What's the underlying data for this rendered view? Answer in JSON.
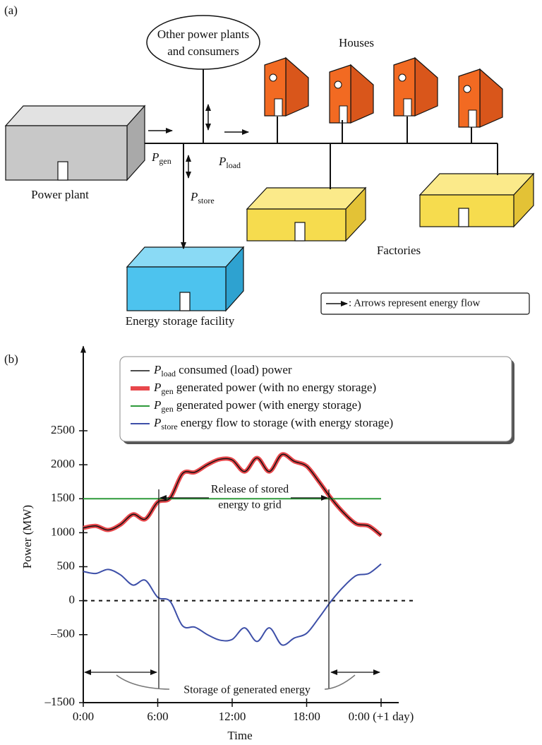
{
  "diagram": {
    "label": "(a)",
    "other": [
      "Other power plants",
      "and consumers"
    ],
    "houses": "Houses",
    "power_plant": "Power plant",
    "storage": "Energy storage facility",
    "factories": "Factories",
    "p_gen": {
      "symbol": "P",
      "subscript": "gen"
    },
    "p_load": {
      "symbol": "P",
      "subscript": "load"
    },
    "p_store": {
      "symbol": "P",
      "subscript": "store"
    },
    "legend": ": Arrows represent energy flow"
  },
  "chart_data": {
    "type": "line",
    "label": "(b)",
    "x_label": "Time",
    "y_label": "Power (MW)",
    "x": [
      0,
      1,
      2,
      3,
      4,
      5,
      6,
      7,
      8,
      9,
      10,
      11,
      12,
      13,
      14,
      15,
      16,
      17,
      18,
      19,
      20,
      21,
      22,
      23,
      24
    ],
    "xlim": [
      0,
      24
    ],
    "xticks": [
      {
        "value": 0,
        "label": "0:00"
      },
      {
        "value": 6,
        "label": "6:00"
      },
      {
        "value": 12,
        "label": "12:00"
      },
      {
        "value": 18,
        "label": "18:00"
      },
      {
        "value": 24,
        "label": "0:00 (+1 day)"
      }
    ],
    "ylim": [
      -1500,
      3700
    ],
    "yticks": [
      {
        "value": -1500,
        "label": "–1500"
      },
      {
        "value": -500,
        "label": "–500"
      },
      0,
      500,
      1000,
      1500,
      2000,
      2500
    ],
    "zero_line": true,
    "series": [
      {
        "symbol": "P",
        "subscript": "load",
        "name": "consumed (load) power",
        "color": "#111111",
        "line_width": 1.5,
        "values": [
          1070,
          1100,
          1040,
          1120,
          1270,
          1200,
          1450,
          1510,
          1870,
          1890,
          2000,
          2080,
          2070,
          1900,
          2100,
          1900,
          2150,
          2050,
          1980,
          1750,
          1500,
          1290,
          1130,
          1100,
          960
        ]
      },
      {
        "symbol": "P",
        "subscript": "gen",
        "name": "generated power (with no energy storage)",
        "color": "#e8474b",
        "line_width": 6,
        "values": [
          1070,
          1100,
          1040,
          1120,
          1270,
          1200,
          1450,
          1510,
          1870,
          1890,
          2000,
          2080,
          2070,
          1900,
          2100,
          1900,
          2150,
          2050,
          1980,
          1750,
          1500,
          1290,
          1130,
          1100,
          960
        ]
      },
      {
        "symbol": "P",
        "subscript": "gen",
        "name": "generated power (with energy storage)",
        "color": "#2e9a3a",
        "line_width": 2,
        "values": [
          1500,
          1500,
          1500,
          1500,
          1500,
          1500,
          1500,
          1500,
          1500,
          1500,
          1500,
          1500,
          1500,
          1500,
          1500,
          1500,
          1500,
          1500,
          1500,
          1500,
          1500,
          1500,
          1500,
          1500,
          1500
        ]
      },
      {
        "symbol": "P",
        "subscript": "store",
        "name": "energy flow to storage (with energy storage)",
        "color": "#3d4fa8",
        "line_width": 2,
        "values": [
          430,
          400,
          460,
          380,
          230,
          300,
          50,
          -10,
          -370,
          -390,
          -500,
          -580,
          -570,
          -400,
          -600,
          -400,
          -650,
          -550,
          -480,
          -250,
          0,
          210,
          370,
          400,
          540
        ]
      }
    ],
    "annotations": [
      "Release of stored",
      "energy to grid",
      "Storage of generated energy"
    ]
  }
}
